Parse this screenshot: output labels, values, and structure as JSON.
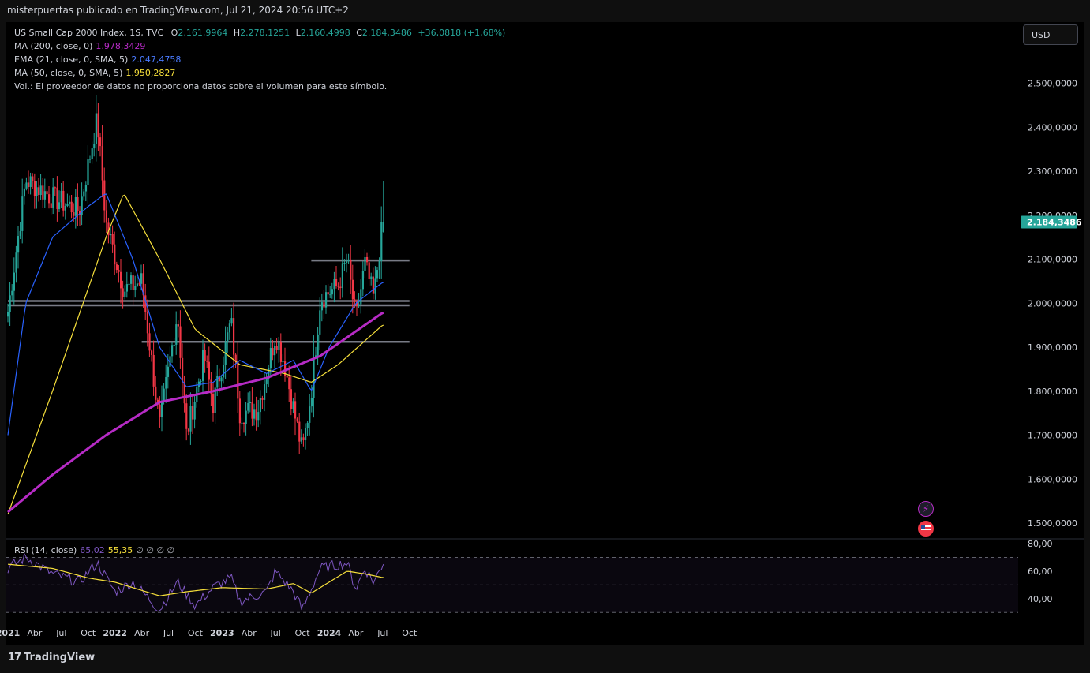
{
  "header": {
    "published": "misterpuertas publicado en TradingView.com, Jul 21, 2024 20:56 UTC+2"
  },
  "legend": {
    "symbol": "US Small Cap 2000 Index, 1S, TVC",
    "o_label": "O",
    "o_value": "2.161,9964",
    "h_label": "H",
    "h_value": "2.278,1251",
    "l_label": "L",
    "l_value": "2.160,4998",
    "c_label": "C",
    "c_value": "2.184,3486",
    "change": "+36,0818 (+1,68%)",
    "ma200_label": "MA (200, close, 0)",
    "ma200_value": "1.978,3429",
    "ema21_label": "EMA (21, close, 0, SMA, 5)",
    "ema21_value": "2.047,4758",
    "ma50_label": "MA (50, close, 0, SMA, 5)",
    "ma50_value": "1.950,2827",
    "vol_note": "Vol.: El proveedor de datos no proporciona datos sobre el volumen para este símbolo.",
    "rsi_label": "RSI (14, close)",
    "rsi_value": "65,02",
    "rsi_ma_value": "55,35",
    "rsi_extra": "∅ ∅ ∅ ∅"
  },
  "toolbar": {
    "currency": "USD"
  },
  "footer": {
    "brand": "TradingView",
    "logo": "17"
  },
  "colors": {
    "up": "#26a69a",
    "down": "#f23645",
    "ma200": "#b62bc5",
    "ema21": "#2962ff",
    "ma50": "#f7e03b",
    "rsi": "#7e57c2",
    "rsi_ma": "#f7e03b",
    "hline": "#787b86"
  },
  "chart_data": {
    "type": "candlestick",
    "price_axis": {
      "ticks": [
        1500000,
        1600000,
        1700000,
        1800000,
        1900000,
        2000000,
        2100000,
        2200000,
        2300000,
        2400000,
        2500000
      ],
      "tick_labels": [
        "1.500,0000",
        "1.600,0000",
        "1.700,0000",
        "1.800,0000",
        "1.900,0000",
        "2.000,0000",
        "2.100,0000",
        "2.200,0000",
        "2.300,0000",
        "2.400,0000",
        "2.500,0000"
      ],
      "last_price": 2184348.6,
      "last_price_label": "2.184,3486"
    },
    "time_axis": {
      "labels": [
        "2021",
        "Abr",
        "Jul",
        "Oct",
        "2022",
        "Abr",
        "Jul",
        "Oct",
        "2023",
        "Abr",
        "Jul",
        "Oct",
        "2024",
        "Abr",
        "Jul",
        "Oct"
      ],
      "bold": [
        "2021",
        "2022",
        "2023",
        "2024"
      ]
    },
    "horizontal_levels": [
      {
        "price": 2097000,
        "from": "2023-11",
        "to": "2024-10"
      },
      {
        "price": 2005000,
        "from": "2021-01",
        "to": "2024-10"
      },
      {
        "price": 1995000,
        "from": "2021-01",
        "to": "2024-10"
      },
      {
        "price": 1912000,
        "from": "2022-04",
        "to": "2024-10"
      }
    ],
    "price_path": [
      [
        "2021-01",
        1980000
      ],
      [
        "2021-03",
        2280000
      ],
      [
        "2021-06",
        2240000
      ],
      [
        "2021-09",
        2210000
      ],
      [
        "2021-11",
        2420000
      ],
      [
        "2021-12",
        2180000
      ],
      [
        "2022-02",
        2030000
      ],
      [
        "2022-04",
        2050000
      ],
      [
        "2022-06",
        1720000
      ],
      [
        "2022-08",
        1980000
      ],
      [
        "2022-09",
        1700000
      ],
      [
        "2022-11",
        1880000
      ],
      [
        "2022-12",
        1770000
      ],
      [
        "2023-02",
        1960000
      ],
      [
        "2023-03",
        1750000
      ],
      [
        "2023-05",
        1760000
      ],
      [
        "2023-07",
        1930000
      ],
      [
        "2023-08",
        1860000
      ],
      [
        "2023-10",
        1660000
      ],
      [
        "2023-11",
        1800000
      ],
      [
        "2023-12",
        2010000
      ],
      [
        "2024-02",
        2040000
      ],
      [
        "2024-03",
        2100000
      ],
      [
        "2024-04",
        1960000
      ],
      [
        "2024-05",
        2090000
      ],
      [
        "2024-06",
        2010000
      ],
      [
        "2024-07",
        2184348.6
      ]
    ],
    "last_candle": {
      "open": 2161996.4,
      "high": 2278125.1,
      "low": 2160499.8,
      "close": 2184348.6
    },
    "indicators": {
      "ma200": [
        [
          "2021-01",
          1525000
        ],
        [
          "2021-06",
          1610000
        ],
        [
          "2021-12",
          1700000
        ],
        [
          "2022-06",
          1775000
        ],
        [
          "2022-12",
          1800000
        ],
        [
          "2023-06",
          1830000
        ],
        [
          "2023-12",
          1880000
        ],
        [
          "2024-07",
          1978342.9
        ]
      ],
      "ema21": [
        [
          "2021-01",
          1700000
        ],
        [
          "2021-03",
          2000000
        ],
        [
          "2021-06",
          2150000
        ],
        [
          "2021-10",
          2220000
        ],
        [
          "2021-12",
          2250000
        ],
        [
          "2022-03",
          2100000
        ],
        [
          "2022-06",
          1900000
        ],
        [
          "2022-09",
          1810000
        ],
        [
          "2022-12",
          1820000
        ],
        [
          "2023-03",
          1870000
        ],
        [
          "2023-06",
          1840000
        ],
        [
          "2023-09",
          1870000
        ],
        [
          "2023-11",
          1800000
        ],
        [
          "2024-01",
          1900000
        ],
        [
          "2024-04",
          2000000
        ],
        [
          "2024-07",
          2047475.8
        ]
      ],
      "ma50": [
        [
          "2021-01",
          1520000
        ],
        [
          "2021-06",
          1800000
        ],
        [
          "2021-12",
          2150000
        ],
        [
          "2022-02",
          2250000
        ],
        [
          "2022-06",
          2100000
        ],
        [
          "2022-10",
          1940000
        ],
        [
          "2023-03",
          1860000
        ],
        [
          "2023-08",
          1840000
        ],
        [
          "2023-11",
          1820000
        ],
        [
          "2024-02",
          1860000
        ],
        [
          "2024-07",
          1950282.7
        ]
      ]
    },
    "rsi": {
      "axis_labels": [
        "80,00",
        "60,00",
        "40,00"
      ],
      "levels": [
        70,
        50,
        30
      ],
      "value": 65.02,
      "ma_value": 55.35,
      "path": [
        [
          "2021-01",
          62
        ],
        [
          "2021-03",
          70
        ],
        [
          "2021-06",
          58
        ],
        [
          "2021-09",
          52
        ],
        [
          "2021-11",
          66
        ],
        [
          "2022-01",
          45
        ],
        [
          "2022-03",
          52
        ],
        [
          "2022-06",
          32
        ],
        [
          "2022-08",
          52
        ],
        [
          "2022-10",
          35
        ],
        [
          "2022-12",
          48
        ],
        [
          "2023-02",
          55
        ],
        [
          "2023-03",
          38
        ],
        [
          "2023-06",
          45
        ],
        [
          "2023-07",
          60
        ],
        [
          "2023-09",
          45
        ],
        [
          "2023-10",
          32
        ],
        [
          "2023-12",
          62
        ],
        [
          "2024-03",
          66
        ],
        [
          "2024-04",
          47
        ],
        [
          "2024-05",
          62
        ],
        [
          "2024-06",
          52
        ],
        [
          "2024-07",
          65.02
        ]
      ],
      "ma_path": [
        [
          "2021-01",
          65
        ],
        [
          "2021-06",
          62
        ],
        [
          "2021-10",
          55
        ],
        [
          "2022-01",
          52
        ],
        [
          "2022-06",
          42
        ],
        [
          "2022-09",
          45
        ],
        [
          "2023-01",
          48
        ],
        [
          "2023-06",
          47
        ],
        [
          "2023-09",
          51
        ],
        [
          "2023-11",
          44
        ],
        [
          "2024-01",
          52
        ],
        [
          "2024-03",
          60
        ],
        [
          "2024-05",
          58
        ],
        [
          "2024-07",
          55.35
        ]
      ]
    }
  }
}
